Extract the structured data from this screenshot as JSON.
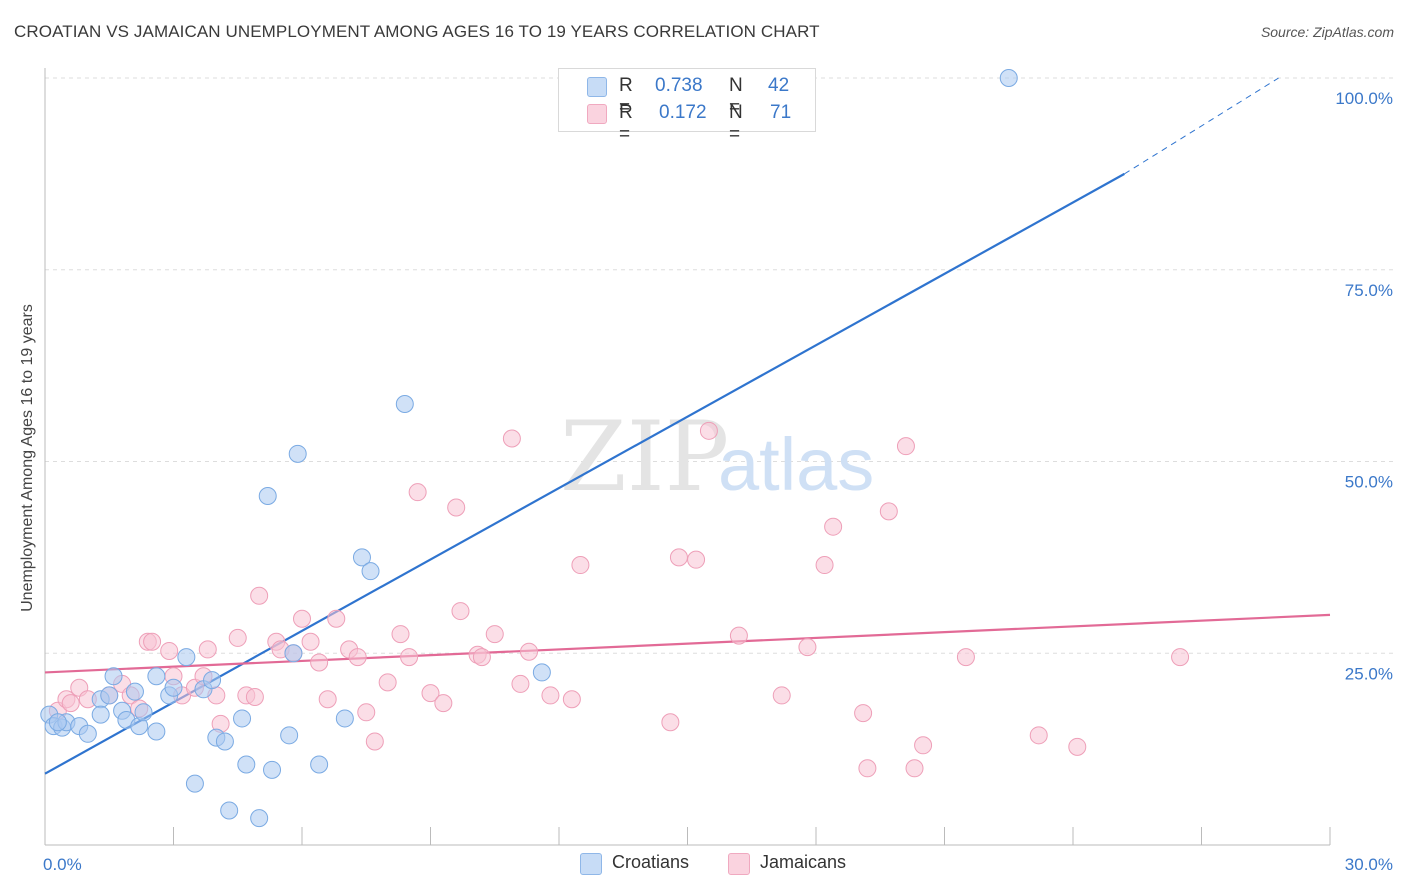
{
  "header": {
    "title": "CROATIAN VS JAMAICAN UNEMPLOYMENT AMONG AGES 16 TO 19 YEARS CORRELATION CHART",
    "source": "Source: ZipAtlas.com"
  },
  "legend_top": {
    "rows": [
      {
        "r_label": "R =",
        "r_value": "0.738",
        "n_label": "N =",
        "n_value": "42",
        "color": "#9ec2ee"
      },
      {
        "r_label": "R =",
        "r_value": "0.172",
        "n_label": "N =",
        "n_value": "71",
        "color": "#f4b8cb"
      }
    ]
  },
  "legend_bottom": [
    {
      "label": "Croatians",
      "color": "#9ec2ee"
    },
    {
      "label": "Jamaicans",
      "color": "#f4b8cb"
    }
  ],
  "watermark": {
    "zip": "ZIP",
    "atlas": "atlas"
  },
  "colors": {
    "croatians_fill": "#a9c9f0",
    "croatians_stroke": "#7aaae3",
    "croatians_line": "#2f74cf",
    "jamaicans_fill": "#f7c3d3",
    "jamaicans_stroke": "#ee9fb8",
    "jamaicans_line": "#e26a96",
    "tick_label": "#3b78c9",
    "grid": "#dddddd"
  },
  "chart_data": {
    "type": "scatter",
    "title": "CROATIAN VS JAMAICAN UNEMPLOYMENT AMONG AGES 16 TO 19 YEARS CORRELATION CHART",
    "xlabel": "",
    "ylabel": "Unemployment Among Ages 16 to 19 years",
    "xlim": [
      0,
      30
    ],
    "ylim": [
      0,
      100
    ],
    "x_ticks": [
      "0.0%",
      "30.0%"
    ],
    "y_ticks": [
      {
        "value": 25,
        "label": "25.0%"
      },
      {
        "value": 50,
        "label": "50.0%"
      },
      {
        "value": 75,
        "label": "75.0%"
      },
      {
        "value": 100,
        "label": "100.0%"
      }
    ],
    "grid": true,
    "legend_position": "top-center",
    "series": [
      {
        "name": "Croatians",
        "r": 0.738,
        "n": 42,
        "trend": {
          "x0": 0,
          "y0": 9.3,
          "x1": 25.2,
          "y1": 87.5,
          "dash_to_x": 28.8,
          "dash_to_y": 100
        },
        "points": [
          [
            0.1,
            17.0
          ],
          [
            0.2,
            15.5
          ],
          [
            0.4,
            15.3
          ],
          [
            0.5,
            16.0
          ],
          [
            0.8,
            15.5
          ],
          [
            1.0,
            14.5
          ],
          [
            1.3,
            19.0
          ],
          [
            1.3,
            17.0
          ],
          [
            1.5,
            19.5
          ],
          [
            1.6,
            22.0
          ],
          [
            1.8,
            17.5
          ],
          [
            1.9,
            16.3
          ],
          [
            2.1,
            20.0
          ],
          [
            2.2,
            15.5
          ],
          [
            2.3,
            17.3
          ],
          [
            2.6,
            14.8
          ],
          [
            2.6,
            22.0
          ],
          [
            2.9,
            19.5
          ],
          [
            3.0,
            20.5
          ],
          [
            3.3,
            24.5
          ],
          [
            3.5,
            8.0
          ],
          [
            3.7,
            20.3
          ],
          [
            3.9,
            21.5
          ],
          [
            4.0,
            14.0
          ],
          [
            4.2,
            13.5
          ],
          [
            4.3,
            4.5
          ],
          [
            4.6,
            16.5
          ],
          [
            4.7,
            10.5
          ],
          [
            5.0,
            3.5
          ],
          [
            5.2,
            45.5
          ],
          [
            5.3,
            9.8
          ],
          [
            5.7,
            14.3
          ],
          [
            5.8,
            25.0
          ],
          [
            5.9,
            51.0
          ],
          [
            6.4,
            10.5
          ],
          [
            7.0,
            16.5
          ],
          [
            7.4,
            37.5
          ],
          [
            7.6,
            35.7
          ],
          [
            8.4,
            57.5
          ],
          [
            11.6,
            22.5
          ],
          [
            22.5,
            100.0
          ],
          [
            0.3,
            16.0
          ]
        ]
      },
      {
        "name": "Jamaicans",
        "r": 0.172,
        "n": 71,
        "trend": {
          "x0": 0,
          "y0": 22.5,
          "x1": 30,
          "y1": 30.0
        },
        "points": [
          [
            0.3,
            17.5
          ],
          [
            0.5,
            19.0
          ],
          [
            0.8,
            20.5
          ],
          [
            1.0,
            19.0
          ],
          [
            1.5,
            19.5
          ],
          [
            1.8,
            21.0
          ],
          [
            2.0,
            19.5
          ],
          [
            2.2,
            17.8
          ],
          [
            2.4,
            26.5
          ],
          [
            2.5,
            26.5
          ],
          [
            2.9,
            25.3
          ],
          [
            3.0,
            22.0
          ],
          [
            3.2,
            19.5
          ],
          [
            3.5,
            20.5
          ],
          [
            3.7,
            22.0
          ],
          [
            3.8,
            25.5
          ],
          [
            4.0,
            19.5
          ],
          [
            4.1,
            15.8
          ],
          [
            4.5,
            27.0
          ],
          [
            4.7,
            19.5
          ],
          [
            4.9,
            19.3
          ],
          [
            5.0,
            32.5
          ],
          [
            5.4,
            26.5
          ],
          [
            5.5,
            25.5
          ],
          [
            5.8,
            25.0
          ],
          [
            6.0,
            29.5
          ],
          [
            6.2,
            26.5
          ],
          [
            6.4,
            23.8
          ],
          [
            6.6,
            19.0
          ],
          [
            6.8,
            29.5
          ],
          [
            7.1,
            25.5
          ],
          [
            7.3,
            24.5
          ],
          [
            7.5,
            17.3
          ],
          [
            7.7,
            13.5
          ],
          [
            8.0,
            21.2
          ],
          [
            8.3,
            27.5
          ],
          [
            8.5,
            24.5
          ],
          [
            8.7,
            46.0
          ],
          [
            9.0,
            19.8
          ],
          [
            9.3,
            18.5
          ],
          [
            9.6,
            44.0
          ],
          [
            9.7,
            30.5
          ],
          [
            10.1,
            24.8
          ],
          [
            10.2,
            24.5
          ],
          [
            10.5,
            27.5
          ],
          [
            10.9,
            53.0
          ],
          [
            11.1,
            21.0
          ],
          [
            11.3,
            25.2
          ],
          [
            11.8,
            19.5
          ],
          [
            12.3,
            19.0
          ],
          [
            12.5,
            36.5
          ],
          [
            14.6,
            16.0
          ],
          [
            14.8,
            37.5
          ],
          [
            15.2,
            37.2
          ],
          [
            15.5,
            54.0
          ],
          [
            16.2,
            27.3
          ],
          [
            17.2,
            19.5
          ],
          [
            17.8,
            25.8
          ],
          [
            18.2,
            36.5
          ],
          [
            18.4,
            41.5
          ],
          [
            19.1,
            17.2
          ],
          [
            19.2,
            10.0
          ],
          [
            19.7,
            43.5
          ],
          [
            20.1,
            52.0
          ],
          [
            20.3,
            10.0
          ],
          [
            20.5,
            13.0
          ],
          [
            21.5,
            24.5
          ],
          [
            23.2,
            14.3
          ],
          [
            24.1,
            12.8
          ],
          [
            26.5,
            24.5
          ],
          [
            0.6,
            18.5
          ]
        ]
      }
    ]
  }
}
